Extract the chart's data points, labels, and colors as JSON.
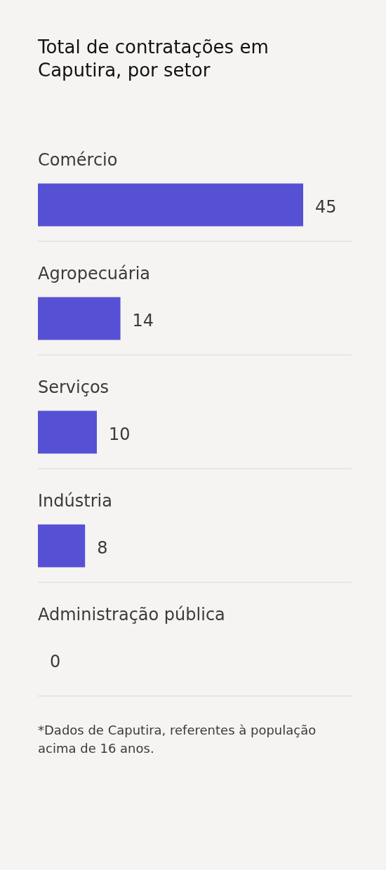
{
  "chart_data": {
    "type": "bar",
    "orientation": "horizontal",
    "title": "Total de contratações em Caputira, por setor",
    "categories": [
      "Comércio",
      "Agropecuária",
      "Serviços",
      "Indústria",
      "Administração pública"
    ],
    "values": [
      45,
      14,
      10,
      8,
      0
    ],
    "color": "#5651d4",
    "data_labels": true,
    "grid": "y",
    "annotations": [
      "*Dados de Caputira, referentes à população acima de 16 anos."
    ]
  }
}
